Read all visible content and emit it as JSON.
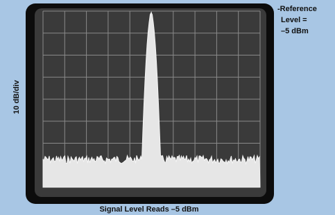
{
  "reference_label": {
    "lines": [
      "-Reference",
      "Level =",
      "–5 dBm"
    ]
  },
  "y_axis_label": "10 dB/div",
  "caption": "Signal Level Reads –5 dBm"
}
